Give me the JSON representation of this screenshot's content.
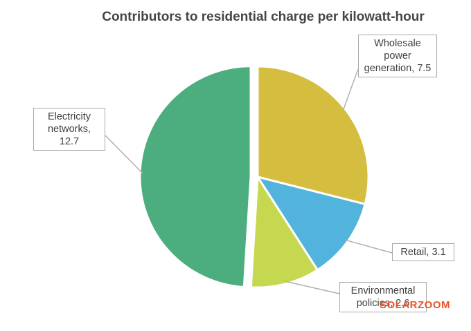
{
  "chart_data": {
    "type": "pie",
    "title": "Contributors to residential charge per kilowatt-hour",
    "values": [
      7.5,
      3.1,
      2.6,
      12.7
    ],
    "value_labels": [
      "Wholesale power generation, 7.5",
      "Retail, 3.1",
      "Environmental policies, 2.6",
      "Electricity networks, 12.7"
    ],
    "colors": [
      "#d4bd3f",
      "#52b4dc",
      "#c6d84f",
      "#4cae7e"
    ],
    "watermark": "SOLARZOOM"
  }
}
